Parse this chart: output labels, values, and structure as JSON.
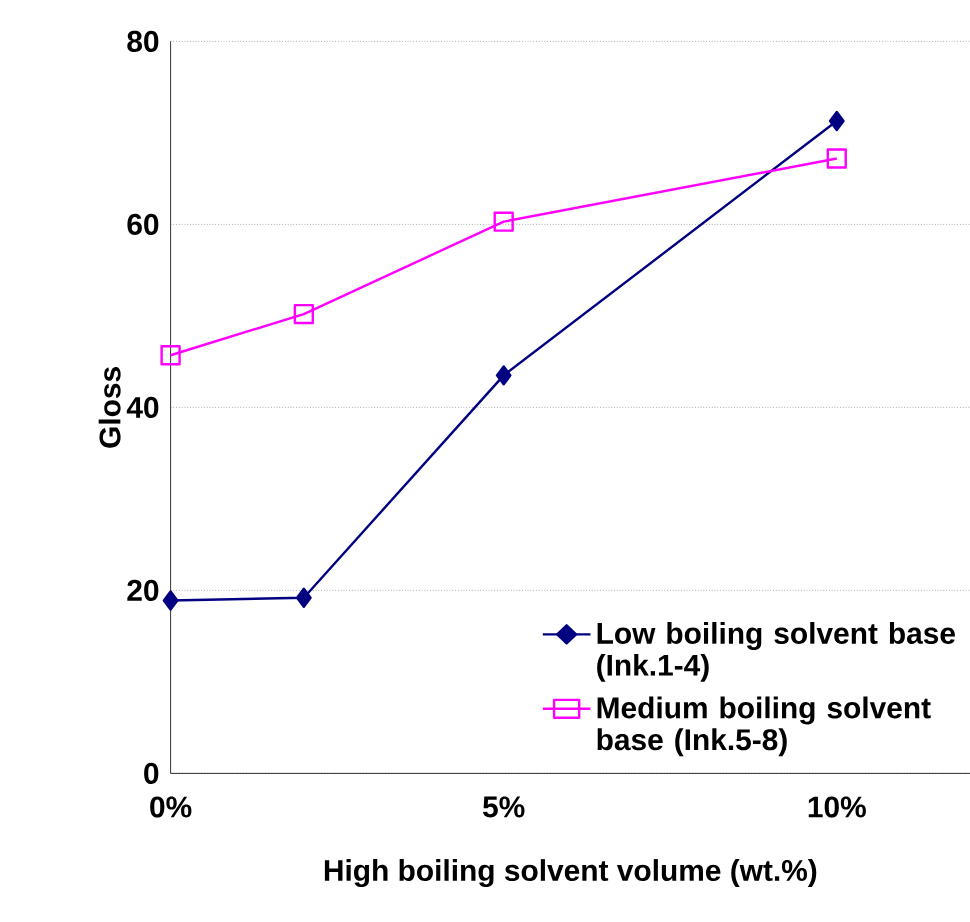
{
  "chart_data": {
    "type": "line",
    "xlabel": "High boiling solvent volume (wt.%)",
    "ylabel": "Gloss",
    "x": [
      0,
      2,
      5,
      10
    ],
    "series": [
      {
        "name": "Low boiling solvent base (Ink.1-4)",
        "color": "#000080",
        "marker": "diamond",
        "values": [
          18.9,
          19.2,
          43.5,
          71.3
        ]
      },
      {
        "name": "Medium boiling solvent base (Ink.5-8)",
        "color": "#ff00ff",
        "marker": "square",
        "values": [
          45.7,
          50.2,
          60.3,
          67.2
        ]
      }
    ],
    "xlim": [
      0,
      12
    ],
    "ylim": [
      0,
      80
    ],
    "xticks": [
      {
        "value": 0,
        "label": "0%"
      },
      {
        "value": 5,
        "label": "5%"
      },
      {
        "value": 10,
        "label": "10%"
      }
    ],
    "yticks": [
      0,
      20,
      40,
      60,
      80
    ],
    "grid": "y",
    "legend": "bottom right"
  }
}
